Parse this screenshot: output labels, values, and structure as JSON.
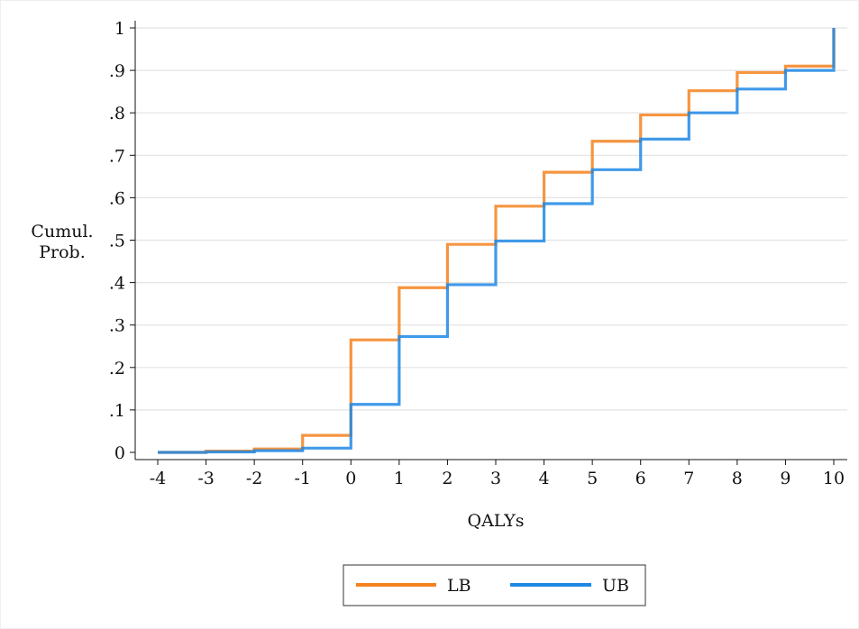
{
  "chart_data": {
    "type": "line",
    "step": true,
    "title": "",
    "xlabel": "QALYs",
    "ylabel_lines": [
      "Cumul.",
      "Prob."
    ],
    "xlim": [
      -4,
      10
    ],
    "ylim": [
      0,
      1
    ],
    "x_ticks": [
      -4,
      -3,
      -2,
      -1,
      0,
      1,
      2,
      3,
      4,
      5,
      6,
      7,
      8,
      9,
      10
    ],
    "x_tick_labels": [
      "-4",
      "-3",
      "-2",
      "-1",
      "0",
      "1",
      "2",
      "3",
      "4",
      "5",
      "6",
      "7",
      "8",
      "9",
      "10"
    ],
    "y_ticks": [
      0,
      0.1,
      0.2,
      0.3,
      0.4,
      0.5,
      0.6,
      0.7,
      0.8,
      0.9,
      1
    ],
    "y_tick_labels": [
      "0",
      ".1",
      ".2",
      ".3",
      ".4",
      ".5",
      ".6",
      ".7",
      ".8",
      ".9",
      "1"
    ],
    "grid": "horizontal",
    "legend_position": "bottom-center",
    "series": [
      {
        "name": "LB",
        "color": "#f5821f",
        "x": [
          -4,
          -3,
          -2,
          -1,
          0,
          1,
          2,
          3,
          4,
          5,
          6,
          7,
          8,
          9,
          10
        ],
        "y": [
          0.0,
          0.003,
          0.008,
          0.04,
          0.265,
          0.388,
          0.49,
          0.58,
          0.66,
          0.733,
          0.795,
          0.852,
          0.895,
          0.91,
          1.0
        ]
      },
      {
        "name": "UB",
        "color": "#1e88e5",
        "x": [
          -4,
          -3,
          -2,
          -1,
          0,
          1,
          2,
          3,
          4,
          5,
          6,
          7,
          8,
          9,
          10
        ],
        "y": [
          0.0,
          0.001,
          0.004,
          0.01,
          0.113,
          0.273,
          0.395,
          0.498,
          0.586,
          0.666,
          0.738,
          0.8,
          0.856,
          0.9,
          1.0
        ]
      }
    ]
  }
}
